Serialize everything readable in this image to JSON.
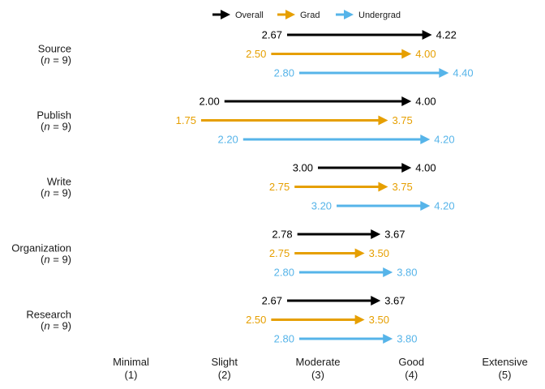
{
  "chart_data": {
    "type": "arrow",
    "legend": {
      "placement": "top",
      "entries": [
        {
          "name": "Overall",
          "color": "#000000"
        },
        {
          "name": "Grad",
          "color": "#E69F00"
        },
        {
          "name": "Undergrad",
          "color": "#56B4E9"
        }
      ]
    },
    "x_ticks": [
      {
        "value": 1,
        "label": "Minimal",
        "sub": "(1)"
      },
      {
        "value": 2,
        "label": "Slight",
        "sub": "(2)"
      },
      {
        "value": 3,
        "label": "Moderate",
        "sub": "(3)"
      },
      {
        "value": 4,
        "label": "Good",
        "sub": "(4)"
      },
      {
        "value": 5,
        "label": "Extensive",
        "sub": "(5)"
      }
    ],
    "xlim": [
      1,
      5
    ],
    "categories": [
      {
        "name": "Source",
        "n_label": "(n = 9)",
        "arrows": [
          {
            "series": "Overall",
            "from": 2.67,
            "to": 4.22,
            "from_label": "2.67",
            "to_label": "4.22"
          },
          {
            "series": "Grad",
            "from": 2.5,
            "to": 4.0,
            "from_label": "2.50",
            "to_label": "4.00"
          },
          {
            "series": "Undergrad",
            "from": 2.8,
            "to": 4.4,
            "from_label": "2.80",
            "to_label": "4.40"
          }
        ]
      },
      {
        "name": "Publish",
        "n_label": "(n = 9)",
        "arrows": [
          {
            "series": "Overall",
            "from": 2.0,
            "to": 4.0,
            "from_label": "2.00",
            "to_label": "4.00"
          },
          {
            "series": "Grad",
            "from": 1.75,
            "to": 3.75,
            "from_label": "1.75",
            "to_label": "3.75"
          },
          {
            "series": "Undergrad",
            "from": 2.2,
            "to": 4.2,
            "from_label": "2.20",
            "to_label": "4.20"
          }
        ]
      },
      {
        "name": "Write",
        "n_label": "(n = 9)",
        "arrows": [
          {
            "series": "Overall",
            "from": 3.0,
            "to": 4.0,
            "from_label": "3.00",
            "to_label": "4.00"
          },
          {
            "series": "Grad",
            "from": 2.75,
            "to": 3.75,
            "from_label": "2.75",
            "to_label": "3.75"
          },
          {
            "series": "Undergrad",
            "from": 3.2,
            "to": 4.2,
            "from_label": "3.20",
            "to_label": "4.20"
          }
        ]
      },
      {
        "name": "Organization",
        "n_label": "(n = 9)",
        "arrows": [
          {
            "series": "Overall",
            "from": 2.78,
            "to": 3.67,
            "from_label": "2.78",
            "to_label": "3.67"
          },
          {
            "series": "Grad",
            "from": 2.75,
            "to": 3.5,
            "from_label": "2.75",
            "to_label": "3.50"
          },
          {
            "series": "Undergrad",
            "from": 2.8,
            "to": 3.8,
            "from_label": "2.80",
            "to_label": "3.80"
          }
        ]
      },
      {
        "name": "Research",
        "n_label": "(n = 9)",
        "arrows": [
          {
            "series": "Overall",
            "from": 2.67,
            "to": 3.67,
            "from_label": "2.67",
            "to_label": "3.67"
          },
          {
            "series": "Grad",
            "from": 2.5,
            "to": 3.5,
            "from_label": "2.50",
            "to_label": "3.50"
          },
          {
            "series": "Undergrad",
            "from": 2.8,
            "to": 3.8,
            "from_label": "2.80",
            "to_label": "3.80"
          }
        ]
      }
    ]
  }
}
